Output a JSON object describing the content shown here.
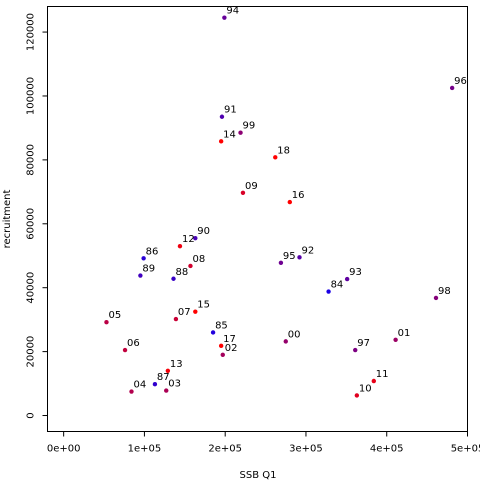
{
  "chart_data": {
    "type": "scatter",
    "xlabel": "SSB Q1",
    "ylabel": "recruitment",
    "xlim": [
      -20000,
      500000
    ],
    "ylim": [
      -5000,
      128000
    ],
    "x_ticks": [
      {
        "value": 0,
        "label": "0e+00"
      },
      {
        "value": 100000,
        "label": "1e+05"
      },
      {
        "value": 200000,
        "label": "2e+05"
      },
      {
        "value": 300000,
        "label": "3e+05"
      },
      {
        "value": 400000,
        "label": "4e+05"
      },
      {
        "value": 500000,
        "label": "5e+05"
      }
    ],
    "y_ticks": [
      {
        "value": 0,
        "label": "0"
      },
      {
        "value": 20000,
        "label": "20000"
      },
      {
        "value": 40000,
        "label": "40000"
      },
      {
        "value": 60000,
        "label": "60000"
      },
      {
        "value": 80000,
        "label": "80000"
      },
      {
        "value": 100000,
        "label": "100000"
      },
      {
        "value": 120000,
        "label": "120000"
      }
    ],
    "grid": false,
    "legend": "none",
    "point_color_gradient": {
      "start": "#0000ff",
      "end": "#ff0000"
    },
    "points": [
      {
        "label": "84",
        "x": 328000,
        "y": 38800,
        "color": "#1a00e5"
      },
      {
        "label": "85",
        "x": 185000,
        "y": 26000,
        "color": "#2200dd"
      },
      {
        "label": "86",
        "x": 99000,
        "y": 49200,
        "color": "#2900d6"
      },
      {
        "label": "87",
        "x": 113000,
        "y": 9800,
        "color": "#3100ce"
      },
      {
        "label": "88",
        "x": 136000,
        "y": 42800,
        "color": "#3800c7"
      },
      {
        "label": "89",
        "x": 95000,
        "y": 43800,
        "color": "#4000bf"
      },
      {
        "label": "90",
        "x": 163000,
        "y": 55500,
        "color": "#4800b7"
      },
      {
        "label": "91",
        "x": 196000,
        "y": 93500,
        "color": "#4f00b0"
      },
      {
        "label": "92",
        "x": 292000,
        "y": 49500,
        "color": "#5700a8"
      },
      {
        "label": "93",
        "x": 351000,
        "y": 42700,
        "color": "#5f00a0"
      },
      {
        "label": "94",
        "x": 199000,
        "y": 124500,
        "color": "#660099"
      },
      {
        "label": "95",
        "x": 269000,
        "y": 47800,
        "color": "#6e0091"
      },
      {
        "label": "96",
        "x": 481000,
        "y": 102500,
        "color": "#750089"
      },
      {
        "label": "97",
        "x": 361000,
        "y": 20500,
        "color": "#7d0082"
      },
      {
        "label": "98",
        "x": 461000,
        "y": 36800,
        "color": "#85007a"
      },
      {
        "label": "99",
        "x": 219000,
        "y": 88500,
        "color": "#8c0073"
      },
      {
        "label": "00",
        "x": 275000,
        "y": 23200,
        "color": "#94006b"
      },
      {
        "label": "01",
        "x": 411000,
        "y": 23700,
        "color": "#9b0064"
      },
      {
        "label": "02",
        "x": 197000,
        "y": 19000,
        "color": "#a3005c"
      },
      {
        "label": "03",
        "x": 127000,
        "y": 7800,
        "color": "#ab0054"
      },
      {
        "label": "04",
        "x": 84000,
        "y": 7500,
        "color": "#b2004d"
      },
      {
        "label": "05",
        "x": 53000,
        "y": 29200,
        "color": "#ba0045"
      },
      {
        "label": "06",
        "x": 76000,
        "y": 20500,
        "color": "#c2003d"
      },
      {
        "label": "07",
        "x": 139000,
        "y": 30200,
        "color": "#c90036"
      },
      {
        "label": "08",
        "x": 157000,
        "y": 46800,
        "color": "#d1002e"
      },
      {
        "label": "09",
        "x": 222000,
        "y": 69700,
        "color": "#d80027"
      },
      {
        "label": "10",
        "x": 363000,
        "y": 6300,
        "color": "#e0001f"
      },
      {
        "label": "11",
        "x": 384000,
        "y": 10800,
        "color": "#e80017"
      },
      {
        "label": "12",
        "x": 144000,
        "y": 53000,
        "color": "#ef0010"
      },
      {
        "label": "13",
        "x": 129000,
        "y": 14000,
        "color": "#f70008"
      },
      {
        "label": "14",
        "x": 195000,
        "y": 85800,
        "color": "#ff0000"
      },
      {
        "label": "15",
        "x": 163000,
        "y": 32500,
        "color": "#ff0000"
      },
      {
        "label": "16",
        "x": 280000,
        "y": 66800,
        "color": "#ff0000"
      },
      {
        "label": "17",
        "x": 195000,
        "y": 21800,
        "color": "#ff0000"
      },
      {
        "label": "18",
        "x": 262000,
        "y": 80800,
        "color": "#ff0000"
      }
    ]
  }
}
